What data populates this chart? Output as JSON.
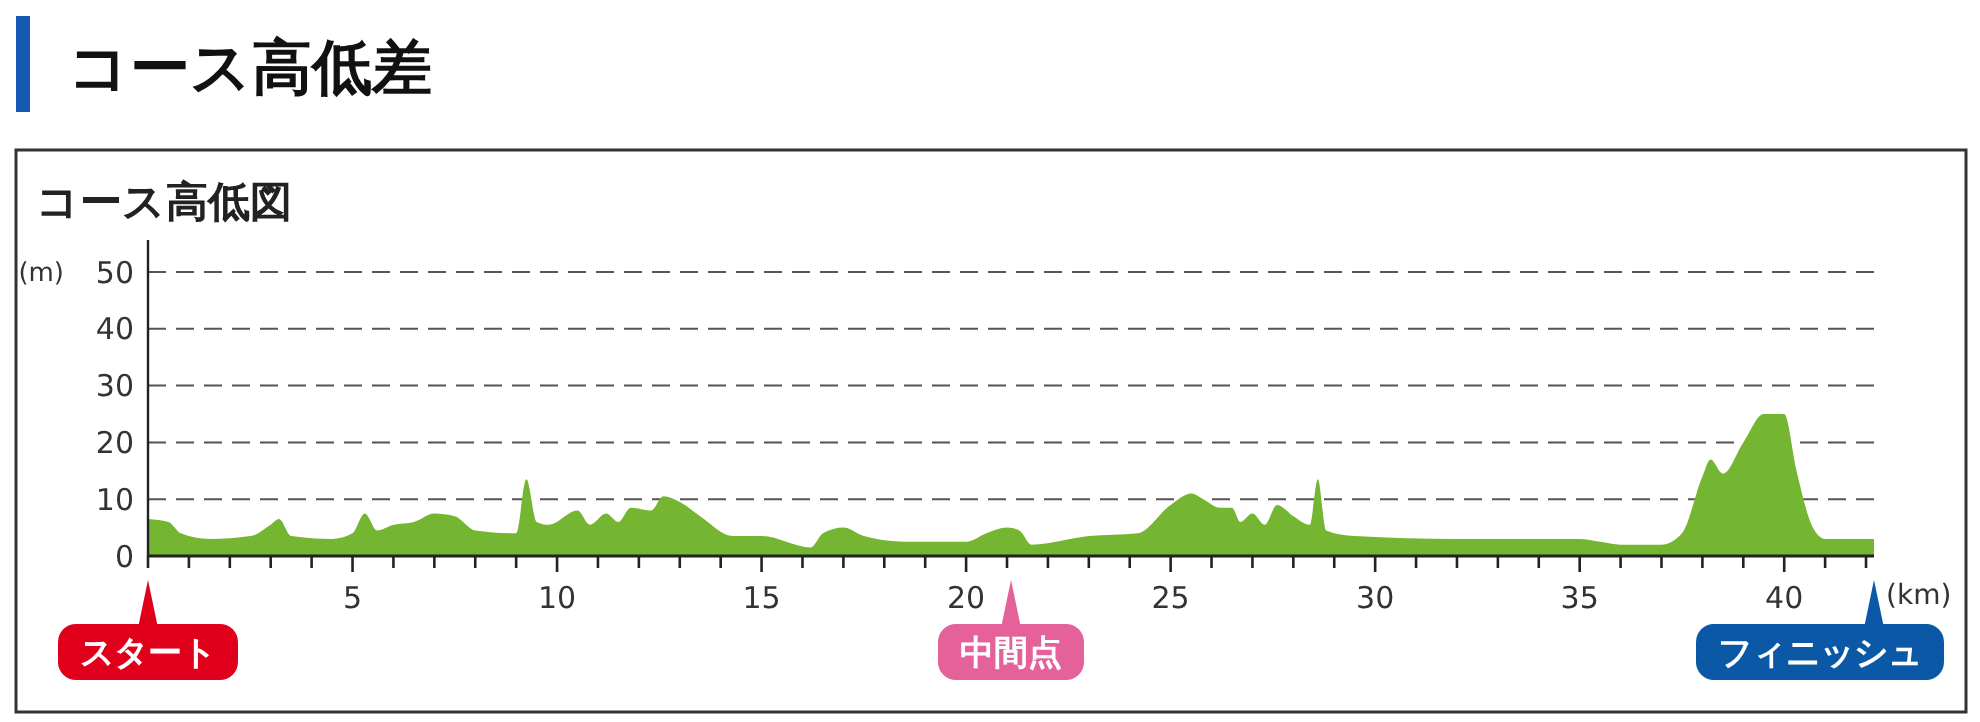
{
  "chart_data": {
    "type": "area",
    "title": "コース高低差",
    "subtitle": "コース高低図",
    "xlabel": "(km)",
    "ylabel": "(m)",
    "x": [
      0,
      0.5,
      0.8,
      1.5,
      2.5,
      3.0,
      3.2,
      3.5,
      4.5,
      5.0,
      5.3,
      5.6,
      6.0,
      6.5,
      7.0,
      7.5,
      8.0,
      9.0,
      9.25,
      9.5,
      9.8,
      10.5,
      10.8,
      11.2,
      11.5,
      11.8,
      12.3,
      12.6,
      13.0,
      13.5,
      14.3,
      15,
      16.2,
      16.5,
      17.0,
      17.5,
      18.5,
      20.0,
      20.5,
      21.0,
      21.3,
      21.6,
      23,
      24.2,
      25.0,
      25.5,
      25.8,
      26.2,
      26.5,
      26.7,
      27.0,
      27.3,
      27.6,
      28.0,
      28.4,
      28.6,
      28.8,
      29.5,
      32,
      34.5,
      35.0,
      35.5,
      36,
      37,
      37.5,
      38.0,
      38.2,
      38.5,
      39.0,
      39.5,
      40.0,
      40.3,
      40.7,
      41,
      42.195
    ],
    "series": [
      {
        "color": "#74b531",
        "values": [
          6.5,
          6,
          4,
          3,
          3.5,
          5.5,
          6.5,
          3.5,
          3,
          4,
          7.5,
          4.5,
          5.5,
          6,
          7.5,
          7,
          4.5,
          4,
          13.5,
          6,
          5.5,
          8,
          5.5,
          7.5,
          6,
          8.5,
          8,
          10.5,
          9.5,
          7,
          3.5,
          3.5,
          1.5,
          4,
          5,
          3.5,
          2.5,
          2.5,
          4,
          5,
          4.5,
          2,
          3.5,
          4,
          9,
          11,
          10,
          8.5,
          8.5,
          6,
          7.5,
          5.5,
          9,
          7,
          5.5,
          13.5,
          4.5,
          3.5,
          3,
          3,
          3,
          2.5,
          2,
          2,
          4,
          14,
          17,
          14.5,
          20,
          25,
          25,
          15,
          5,
          3,
          3
        ]
      }
    ],
    "xlim": [
      0,
      42.195
    ],
    "xticks": [
      {
        "value": 0,
        "label": null
      },
      {
        "value": 1,
        "label": null
      },
      {
        "value": 2,
        "label": null
      },
      {
        "value": 3,
        "label": null
      },
      {
        "value": 4,
        "label": null
      },
      5,
      {
        "value": 6,
        "label": null
      },
      {
        "value": 7,
        "label": null
      },
      {
        "value": 8,
        "label": null
      },
      {
        "value": 9,
        "label": null
      },
      10,
      {
        "value": 11,
        "label": null
      },
      {
        "value": 12,
        "label": null
      },
      {
        "value": 13,
        "label": null
      },
      {
        "value": 14,
        "label": null
      },
      15,
      {
        "value": 16,
        "label": null
      },
      {
        "value": 17,
        "label": null
      },
      {
        "value": 18,
        "label": null
      },
      {
        "value": 19,
        "label": null
      },
      20,
      {
        "value": 21,
        "label": null
      },
      {
        "value": 22,
        "label": null
      },
      {
        "value": 23,
        "label": null
      },
      {
        "value": 24,
        "label": null
      },
      25,
      {
        "value": 26,
        "label": null
      },
      {
        "value": 27,
        "label": null
      },
      {
        "value": 28,
        "label": null
      },
      {
        "value": 29,
        "label": null
      },
      30,
      {
        "value": 31,
        "label": null
      },
      {
        "value": 32,
        "label": null
      },
      {
        "value": 33,
        "label": null
      },
      {
        "value": 34,
        "label": null
      },
      35,
      {
        "value": 36,
        "label": null
      },
      {
        "value": 37,
        "label": null
      },
      {
        "value": 38,
        "label": null
      },
      {
        "value": 39,
        "label": null
      },
      40,
      {
        "value": 41,
        "label": null
      },
      {
        "value": 42,
        "label": null
      }
    ],
    "ylim": [
      0,
      50
    ],
    "yticks": [
      0,
      10,
      20,
      30,
      40,
      50
    ],
    "grid": "y",
    "annotations": [
      {
        "text": "スタート",
        "x": 0,
        "y": 0
      },
      {
        "text": "中間点",
        "x": 21.0975,
        "y": 0
      },
      {
        "text": "フィニッシュ",
        "x": 42.195,
        "y": 0
      }
    ]
  }
}
